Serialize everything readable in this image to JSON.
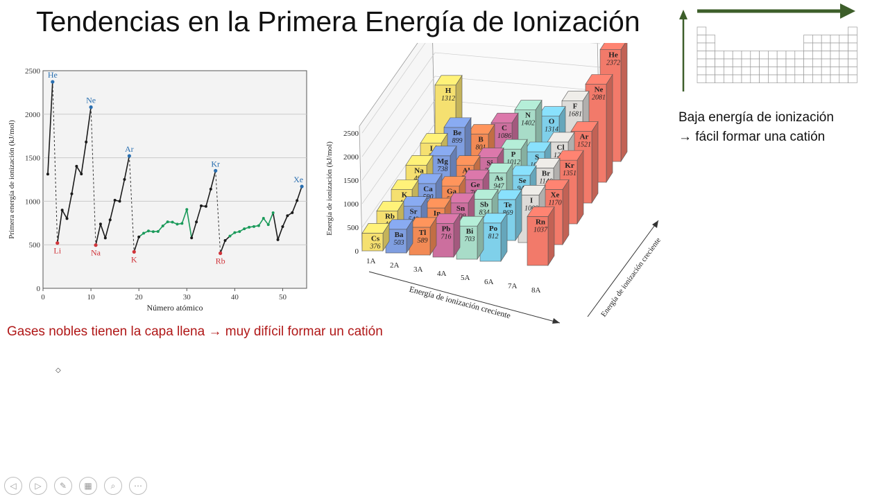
{
  "title": "Tendencias en la Primera Energía de Ionización",
  "notes": {
    "right_line1": "Baja energía de ionización",
    "right_line2": "→ fácil formar una catión",
    "bottom": "Gases nobles tienen la capa llena → muy difícil formar un catión"
  },
  "toolbar": {
    "items": [
      {
        "name": "previous-slide-button",
        "icon": "◁"
      },
      {
        "name": "next-slide-button",
        "icon": "▷"
      },
      {
        "name": "pen-tool-button",
        "icon": "✎"
      },
      {
        "name": "slide-overview-button",
        "icon": "▦"
      },
      {
        "name": "zoom-button",
        "icon": "⌕"
      },
      {
        "name": "more-options-button",
        "icon": "⋯"
      }
    ]
  },
  "chart_data": [
    {
      "type": "line",
      "xlabel": "Número atómico",
      "ylabel": "Primera energía de ionización (kJ/mol)",
      "xlim": [
        0,
        55
      ],
      "ylim": [
        0,
        2500
      ],
      "xticks": [
        0,
        10,
        20,
        30,
        40,
        50
      ],
      "yticks": [
        0,
        500,
        1000,
        1500,
        2000,
        2500
      ],
      "grid": true,
      "x": [
        1,
        2,
        3,
        4,
        5,
        6,
        7,
        8,
        9,
        10,
        11,
        12,
        13,
        14,
        15,
        16,
        17,
        18,
        19,
        20,
        21,
        22,
        23,
        24,
        25,
        26,
        27,
        28,
        29,
        30,
        31,
        32,
        33,
        34,
        35,
        36,
        37,
        38,
        39,
        40,
        41,
        42,
        43,
        44,
        45,
        46,
        47,
        48,
        49,
        50,
        51,
        52,
        53,
        54
      ],
      "y": [
        1312,
        2372,
        520,
        899,
        801,
        1086,
        1402,
        1314,
        1681,
        2081,
        496,
        738,
        578,
        786,
        1012,
        1000,
        1251,
        1521,
        419,
        590,
        633,
        659,
        651,
        653,
        717,
        763,
        760,
        737,
        745,
        906,
        579,
        762,
        947,
        941,
        1140,
        1351,
        403,
        549,
        600,
        640,
        652,
        684,
        702,
        710,
        720,
        804,
        731,
        868,
        558,
        709,
        834,
        869,
        1008,
        1170
      ],
      "segment_colors": [
        "#1a1a1a",
        "#1a9a5a"
      ],
      "annotations": [
        {
          "label": "He",
          "x": 2,
          "y": 2372,
          "color": "#2a6fb0"
        },
        {
          "label": "Ne",
          "x": 10,
          "y": 2081,
          "color": "#2a6fb0"
        },
        {
          "label": "Ar",
          "x": 18,
          "y": 1521,
          "color": "#2a6fb0"
        },
        {
          "label": "Kr",
          "x": 36,
          "y": 1351,
          "color": "#2a6fb0"
        },
        {
          "label": "Xe",
          "x": 54,
          "y": 1170,
          "color": "#2a6fb0"
        },
        {
          "label": "Li",
          "x": 3,
          "y": 520,
          "color": "#d0343a"
        },
        {
          "label": "Na",
          "x": 11,
          "y": 496,
          "color": "#d0343a"
        },
        {
          "label": "K",
          "x": 19,
          "y": 419,
          "color": "#d0343a"
        },
        {
          "label": "Rb",
          "x": 37,
          "y": 403,
          "color": "#d0343a"
        }
      ]
    },
    {
      "type": "bar",
      "subtype": "3d-periodic-table",
      "ylabel": "Energía de ionización (kJ/mol)",
      "ylim": [
        0,
        2500
      ],
      "yticks": [
        0,
        500,
        1000,
        1500,
        2000,
        2500
      ],
      "groups": [
        "1A",
        "2A",
        "3A",
        "4A",
        "5A",
        "6A",
        "7A",
        "8A"
      ],
      "xlabel": "Energía de ionización creciente",
      "depth_label": "Energía de ionización creciente",
      "group_colors": [
        "#f5e070",
        "#7f9ee0",
        "#f28a55",
        "#cc6f9e",
        "#a8dcc8",
        "#7fd0ea",
        "#dddbd8",
        "#f27a6a"
      ],
      "elements": [
        {
          "symbol": "H",
          "value": 1312,
          "group": 0,
          "period": 1
        },
        {
          "symbol": "He",
          "value": 2372,
          "group": 7,
          "period": 1
        },
        {
          "symbol": "Li",
          "value": 520,
          "group": 0,
          "period": 2
        },
        {
          "symbol": "Be",
          "value": 899,
          "group": 1,
          "period": 2
        },
        {
          "symbol": "B",
          "value": 801,
          "group": 2,
          "period": 2
        },
        {
          "symbol": "C",
          "value": 1086,
          "group": 3,
          "period": 2
        },
        {
          "symbol": "N",
          "value": 1402,
          "group": 4,
          "period": 2
        },
        {
          "symbol": "O",
          "value": 1314,
          "group": 5,
          "period": 2
        },
        {
          "symbol": "F",
          "value": 1681,
          "group": 6,
          "period": 2
        },
        {
          "symbol": "Ne",
          "value": 2081,
          "group": 7,
          "period": 2
        },
        {
          "symbol": "Na",
          "value": 496,
          "group": 0,
          "period": 3
        },
        {
          "symbol": "Mg",
          "value": 738,
          "group": 1,
          "period": 3
        },
        {
          "symbol": "Al",
          "value": 578,
          "group": 2,
          "period": 3
        },
        {
          "symbol": "Si",
          "value": 786,
          "group": 3,
          "period": 3
        },
        {
          "symbol": "P",
          "value": 1012,
          "group": 4,
          "period": 3
        },
        {
          "symbol": "S",
          "value": 1000,
          "group": 5,
          "period": 3
        },
        {
          "symbol": "Cl",
          "value": 1251,
          "group": 6,
          "period": 3
        },
        {
          "symbol": "Ar",
          "value": 1521,
          "group": 7,
          "period": 3
        },
        {
          "symbol": "K",
          "value": 419,
          "group": 0,
          "period": 4
        },
        {
          "symbol": "Ca",
          "value": 590,
          "group": 1,
          "period": 4
        },
        {
          "symbol": "Ga",
          "value": 579,
          "group": 2,
          "period": 4
        },
        {
          "symbol": "Ge",
          "value": 762,
          "group": 3,
          "period": 4
        },
        {
          "symbol": "As",
          "value": 947,
          "group": 4,
          "period": 4
        },
        {
          "symbol": "Se",
          "value": 941,
          "group": 5,
          "period": 4
        },
        {
          "symbol": "Br",
          "value": 1140,
          "group": 6,
          "period": 4
        },
        {
          "symbol": "Kr",
          "value": 1351,
          "group": 7,
          "period": 4
        },
        {
          "symbol": "Rb",
          "value": 403,
          "group": 0,
          "period": 5
        },
        {
          "symbol": "Sr",
          "value": 549,
          "group": 1,
          "period": 5
        },
        {
          "symbol": "In",
          "value": 558,
          "group": 2,
          "period": 5
        },
        {
          "symbol": "Sn",
          "value": 709,
          "group": 3,
          "period": 5
        },
        {
          "symbol": "Sb",
          "value": 834,
          "group": 4,
          "period": 5
        },
        {
          "symbol": "Te",
          "value": 869,
          "group": 5,
          "period": 5
        },
        {
          "symbol": "I",
          "value": 1008,
          "group": 6,
          "period": 5
        },
        {
          "symbol": "Xe",
          "value": 1170,
          "group": 7,
          "period": 5
        },
        {
          "symbol": "Cs",
          "value": 376,
          "group": 0,
          "period": 6
        },
        {
          "symbol": "Ba",
          "value": 503,
          "group": 1,
          "period": 6
        },
        {
          "symbol": "Tl",
          "value": 589,
          "group": 2,
          "period": 6
        },
        {
          "symbol": "Pb",
          "value": 716,
          "group": 3,
          "period": 6
        },
        {
          "symbol": "Bi",
          "value": 703,
          "group": 4,
          "period": 6
        },
        {
          "symbol": "Po",
          "value": 812,
          "group": 5,
          "period": 6
        },
        {
          "symbol": "Rn",
          "value": 1037,
          "group": 7,
          "period": 6
        }
      ]
    }
  ],
  "mini_table": {
    "arrow_color": "#3d5e2a"
  }
}
